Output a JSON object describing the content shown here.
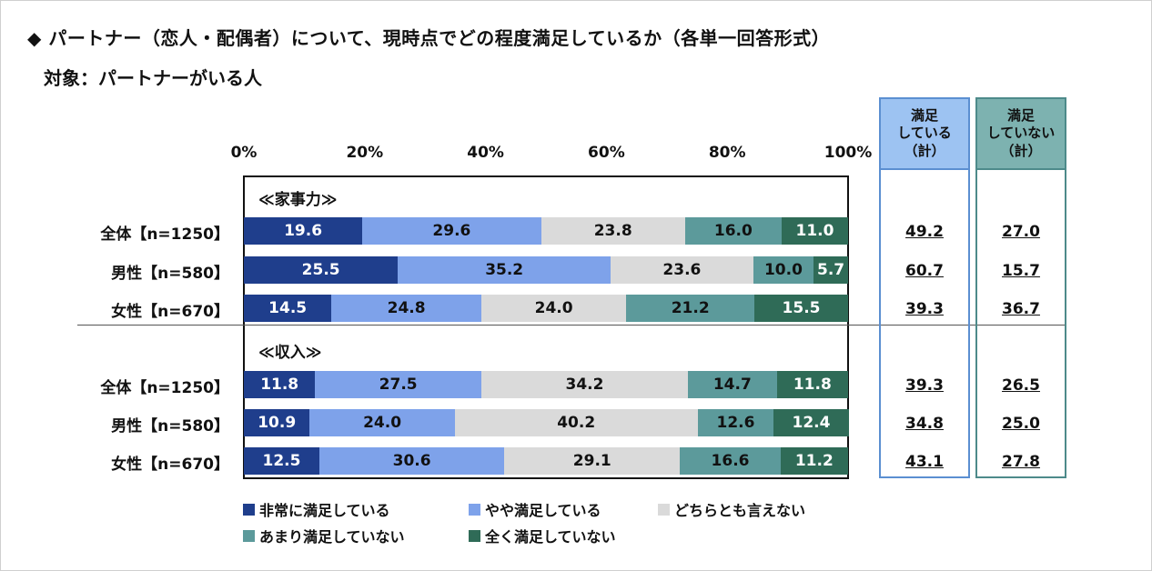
{
  "title": "◆ パートナー（恋人・配偶者）について、現時点でどの程度満足しているか（各単一回答形式）",
  "subtitle": "対象：パートナーがいる人",
  "colors": {
    "very_satisfied": "#1F3E8C",
    "somewhat_satisfied": "#7EA2EA",
    "neither": "#DADADA",
    "somewhat_dissatisfied": "#5C9A9B",
    "very_dissatisfied": "#2F6B57",
    "summary_sat_header": "#9DC3F2",
    "summary_sat_border": "#5B8FD1",
    "summary_unsat_header": "#7DB2B0",
    "summary_unsat_border": "#4D8A8A"
  },
  "chart_data": {
    "type": "bar",
    "orientation": "horizontal",
    "stacked": true,
    "xlim": [
      0,
      100
    ],
    "x_ticks": [
      "0%",
      "20%",
      "40%",
      "60%",
      "80%",
      "100%"
    ],
    "legend_position": "bottom",
    "series_names": [
      "非常に満足している",
      "やや満足している",
      "どちらとも言えない",
      "あまり満足していない",
      "全く満足していない"
    ],
    "groups": [
      {
        "label": "≪家事力≫",
        "rows": [
          {
            "label": "全体【n=1250】",
            "values": [
              19.6,
              29.6,
              23.8,
              16.0,
              11.0
            ],
            "satisfied_total": "49.2",
            "unsatisfied_total": "27.0"
          },
          {
            "label": "男性【n=580】",
            "values": [
              25.5,
              35.2,
              23.6,
              10.0,
              5.7
            ],
            "satisfied_total": "60.7",
            "unsatisfied_total": "15.7"
          },
          {
            "label": "女性【n=670】",
            "values": [
              14.5,
              24.8,
              24.0,
              21.2,
              15.5
            ],
            "satisfied_total": "39.3",
            "unsatisfied_total": "36.7"
          }
        ]
      },
      {
        "label": "≪収入≫",
        "rows": [
          {
            "label": "全体【n=1250】",
            "values": [
              11.8,
              27.5,
              34.2,
              14.7,
              11.8
            ],
            "satisfied_total": "39.3",
            "unsatisfied_total": "26.5"
          },
          {
            "label": "男性【n=580】",
            "values": [
              10.9,
              24.0,
              40.2,
              12.6,
              12.4
            ],
            "satisfied_total": "34.8",
            "unsatisfied_total": "25.0"
          },
          {
            "label": "女性【n=670】",
            "values": [
              12.5,
              30.6,
              29.1,
              16.6,
              11.2
            ],
            "satisfied_total": "43.1",
            "unsatisfied_total": "27.8"
          }
        ]
      }
    ],
    "summary_headers": {
      "satisfied": [
        "満足",
        "している",
        "（計）"
      ],
      "unsatisfied": [
        "満足",
        "していない",
        "（計）"
      ]
    }
  }
}
